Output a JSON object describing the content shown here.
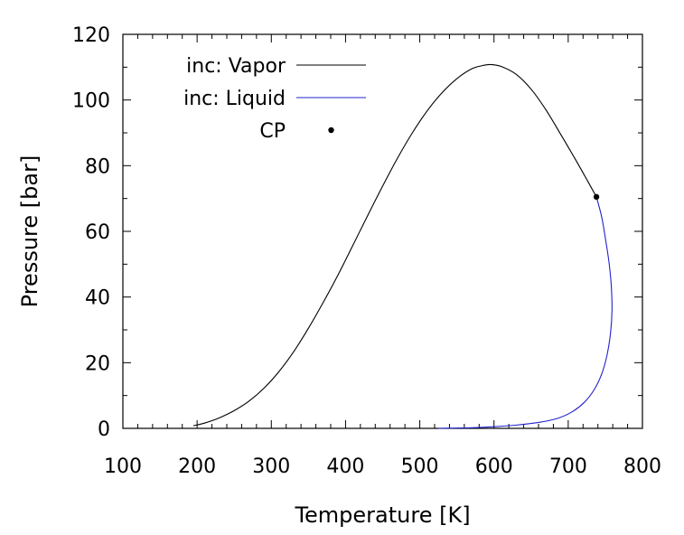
{
  "chart_data": {
    "type": "line",
    "xlabel": "Temperature [K]",
    "ylabel": "Pressure [bar]",
    "xlim": [
      100,
      800
    ],
    "ylim": [
      0,
      120
    ],
    "xticks": [
      100,
      200,
      300,
      400,
      500,
      600,
      700,
      800
    ],
    "yticks": [
      0,
      20,
      40,
      60,
      80,
      100,
      120
    ],
    "x_minor_step": 20,
    "y_minor_step": 10,
    "grid": false,
    "legend_position": "top-left",
    "series": [
      {
        "name": "inc: Vapor",
        "color": "#000000",
        "style": "line",
        "points": [
          [
            195,
            0.8
          ],
          [
            210,
            1.6
          ],
          [
            230,
            3.2
          ],
          [
            250,
            5.4
          ],
          [
            270,
            8.3
          ],
          [
            290,
            12.2
          ],
          [
            310,
            17.2
          ],
          [
            330,
            23.3
          ],
          [
            350,
            30.5
          ],
          [
            370,
            38.4
          ],
          [
            390,
            46.8
          ],
          [
            410,
            55.8
          ],
          [
            430,
            64.9
          ],
          [
            450,
            73.8
          ],
          [
            470,
            82.3
          ],
          [
            490,
            90.0
          ],
          [
            510,
            96.7
          ],
          [
            530,
            102.2
          ],
          [
            550,
            106.5
          ],
          [
            570,
            109.5
          ],
          [
            585,
            110.5
          ],
          [
            595,
            110.8
          ],
          [
            610,
            110.2
          ],
          [
            630,
            107.8
          ],
          [
            650,
            103.3
          ],
          [
            670,
            97.0
          ],
          [
            690,
            89.5
          ],
          [
            710,
            81.8
          ],
          [
            725,
            75.8
          ],
          [
            738,
            70.5
          ]
        ]
      },
      {
        "name": "inc: Liquid",
        "color": "#2222cc",
        "style": "line",
        "points": [
          [
            738,
            70.5
          ],
          [
            745,
            64.5
          ],
          [
            750,
            58.0
          ],
          [
            755,
            50.5
          ],
          [
            758,
            43.5
          ],
          [
            759,
            36.0
          ],
          [
            757,
            29.0
          ],
          [
            752,
            22.0
          ],
          [
            745,
            16.5
          ],
          [
            735,
            11.8
          ],
          [
            722,
            8.0
          ],
          [
            705,
            5.0
          ],
          [
            685,
            3.0
          ],
          [
            660,
            1.8
          ],
          [
            630,
            1.0
          ],
          [
            600,
            0.5
          ],
          [
            570,
            0.2
          ],
          [
            540,
            0.05
          ],
          [
            525,
            0.0
          ]
        ]
      },
      {
        "name": "CP",
        "color": "#000000",
        "style": "point",
        "points": [
          [
            738,
            70.5
          ]
        ]
      }
    ]
  }
}
